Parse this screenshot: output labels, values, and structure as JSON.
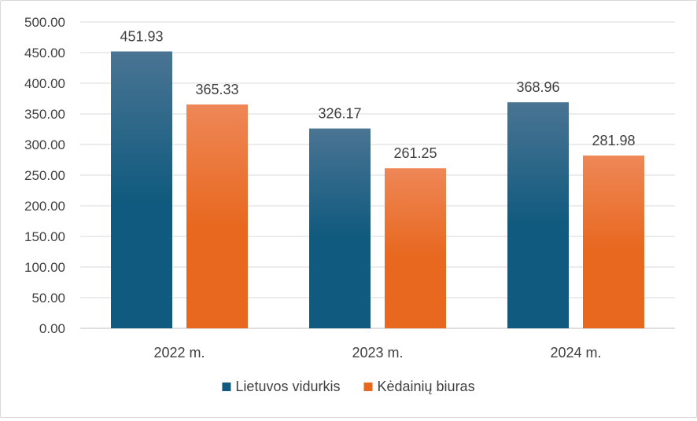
{
  "chart_data": {
    "type": "bar",
    "title": "",
    "xlabel": "",
    "ylabel": "",
    "categories": [
      "2022 m.",
      "2023 m.",
      "2024 m."
    ],
    "series": [
      {
        "name": "Lietuvos vidurkis",
        "values": [
          451.93,
          326.17,
          368.96
        ],
        "value_labels": [
          "451.93",
          "326.17",
          "368.96"
        ],
        "color": "#0f5a7e",
        "color_light": "#4a7493"
      },
      {
        "name": "Kėdainių biuras",
        "values": [
          365.33,
          261.25,
          281.98
        ],
        "value_labels": [
          "365.33",
          "261.25",
          "281.98"
        ],
        "color": "#e8681f",
        "color_light": "#ee8757"
      }
    ],
    "ylim": [
      0,
      500
    ],
    "yticks": [
      0,
      50,
      100,
      150,
      200,
      250,
      300,
      350,
      400,
      450,
      500
    ],
    "ytick_labels": [
      "0.00",
      "50.00",
      "100.00",
      "150.00",
      "200.00",
      "250.00",
      "300.00",
      "350.00",
      "400.00",
      "450.00",
      "500.00"
    ],
    "grid": true,
    "legend_position": "bottom-center",
    "gridline_color": "#d9d9d9",
    "axis_line_color": "#bfbfbf"
  }
}
